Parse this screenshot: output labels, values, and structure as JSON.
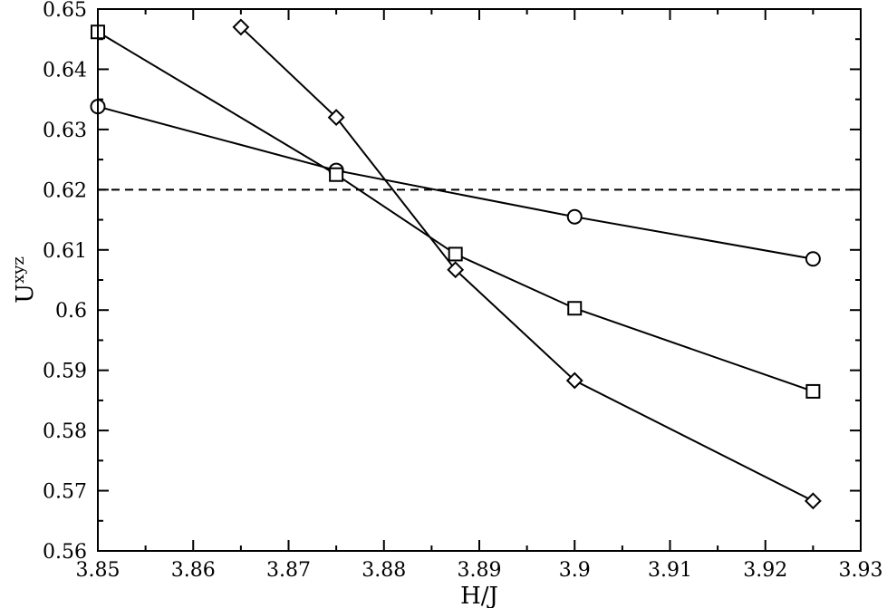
{
  "chart_data": {
    "type": "line",
    "xlabel": "H/J",
    "ylabel": {
      "base": "U",
      "superscript": "xyz"
    },
    "xlim": [
      3.85,
      3.93
    ],
    "ylim": [
      0.56,
      0.65
    ],
    "x_ticks": [
      "3.85",
      "3.86",
      "3.87",
      "3.88",
      "3.89",
      "3.9",
      "3.91",
      "3.92",
      "3.93"
    ],
    "y_ticks": [
      "0.56",
      "0.57",
      "0.58",
      "0.59",
      "0.6",
      "0.61",
      "0.62",
      "0.63",
      "0.64",
      "0.65"
    ],
    "grid": false,
    "legend": "none",
    "series": [
      {
        "marker": "circle",
        "x": [
          3.85,
          3.875,
          3.9,
          3.925
        ],
        "y": [
          0.6338,
          0.6232,
          0.6155,
          0.6085
        ]
      },
      {
        "marker": "square",
        "x": [
          3.85,
          3.875,
          3.8875,
          3.9,
          3.925
        ],
        "y": [
          0.6462,
          0.6225,
          0.6093,
          0.6003,
          0.5865
        ]
      },
      {
        "marker": "diamond",
        "x": [
          3.865,
          3.875,
          3.8875,
          3.9,
          3.925
        ],
        "y": [
          0.647,
          0.632,
          0.6067,
          0.5883,
          0.5683
        ]
      }
    ],
    "reference_lines": [
      {
        "axis": "y",
        "value": 0.62,
        "style": "dashed"
      }
    ]
  }
}
